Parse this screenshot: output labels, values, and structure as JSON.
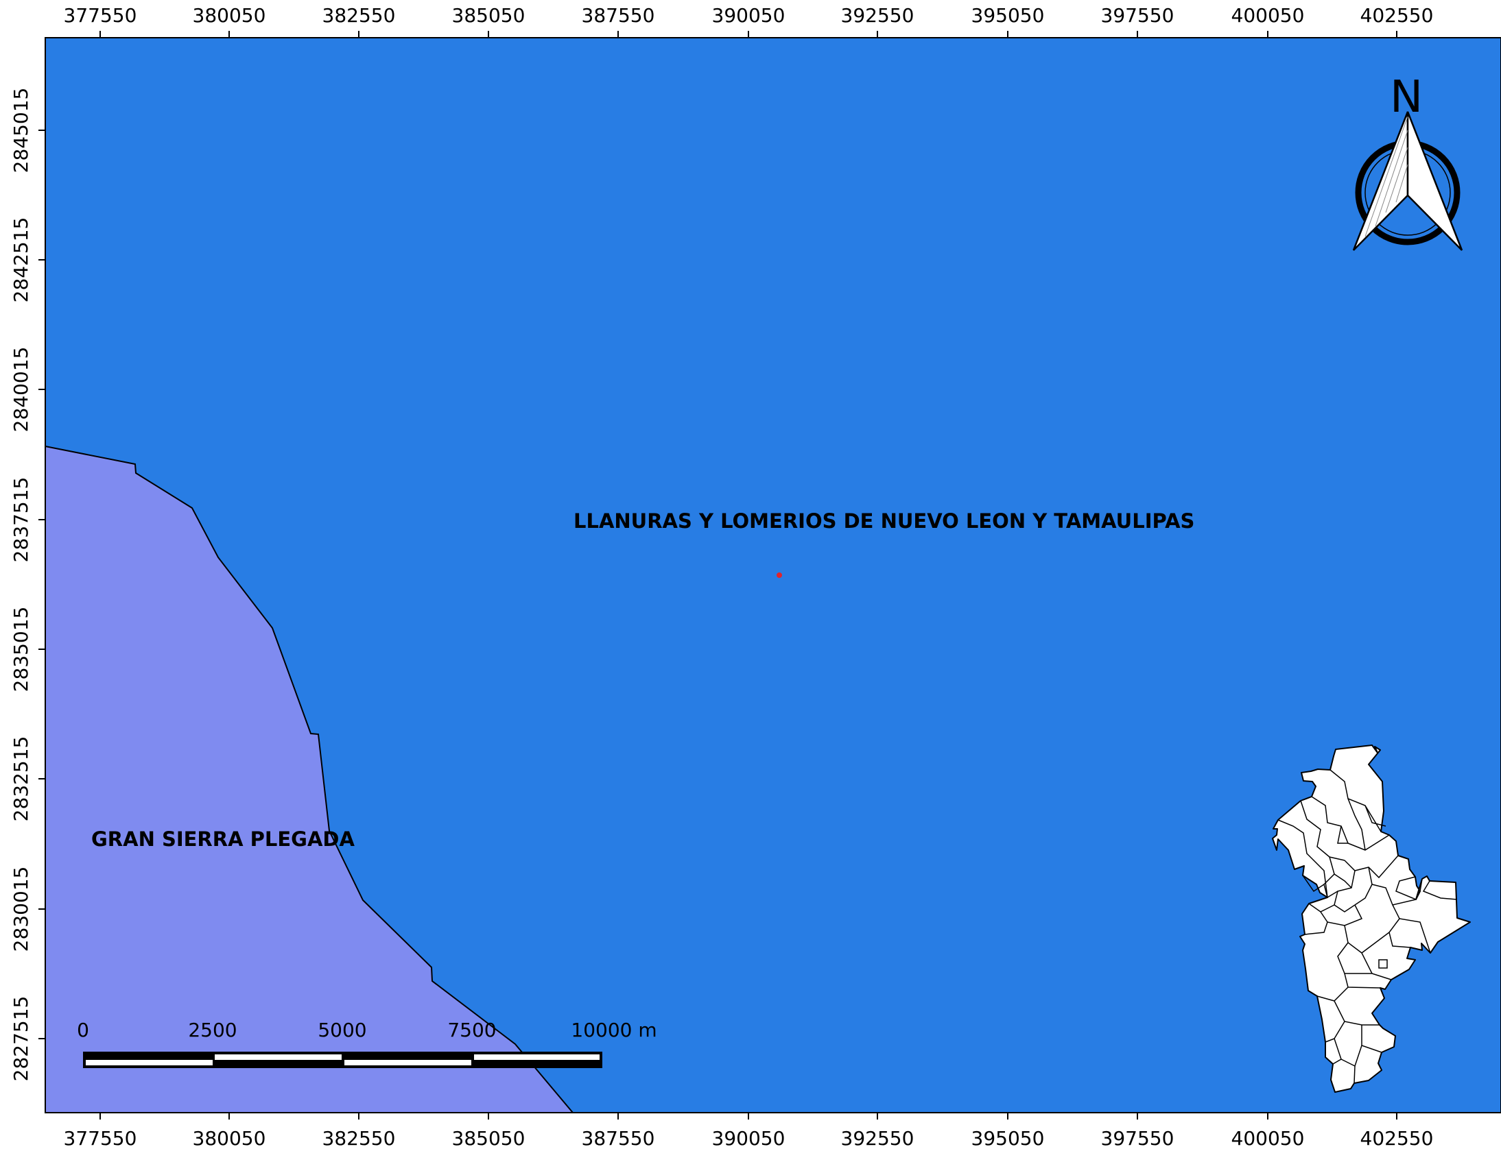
{
  "map": {
    "colors": {
      "region_main": "#287de4",
      "region_secondary": "#7f8bf0",
      "boundary": "#000000",
      "point_marker": "#e0242c",
      "inset_fill": "#ffffff"
    },
    "x_ticks": [
      "377550",
      "380050",
      "382550",
      "385050",
      "387550",
      "390050",
      "392550",
      "395050",
      "397550",
      "400050",
      "402550"
    ],
    "y_ticks": [
      "2845015",
      "2842515",
      "2840015",
      "2837515",
      "2835015",
      "2832515",
      "2830015",
      "2827515"
    ],
    "regions": [
      {
        "name": "LLANURAS Y LOMERIOS DE NUEVO LEON Y TAMAULIPAS"
      },
      {
        "name": "GRAN SIERRA PLEGADA"
      }
    ],
    "north_arrow": {
      "letter": "N",
      "icon": "north-arrow-icon"
    },
    "scale_bar": {
      "labels": [
        "0",
        "2500",
        "5000",
        "7500",
        "10000 m"
      ]
    },
    "inset": {
      "icon": "state-municipalities-inset-icon"
    }
  }
}
